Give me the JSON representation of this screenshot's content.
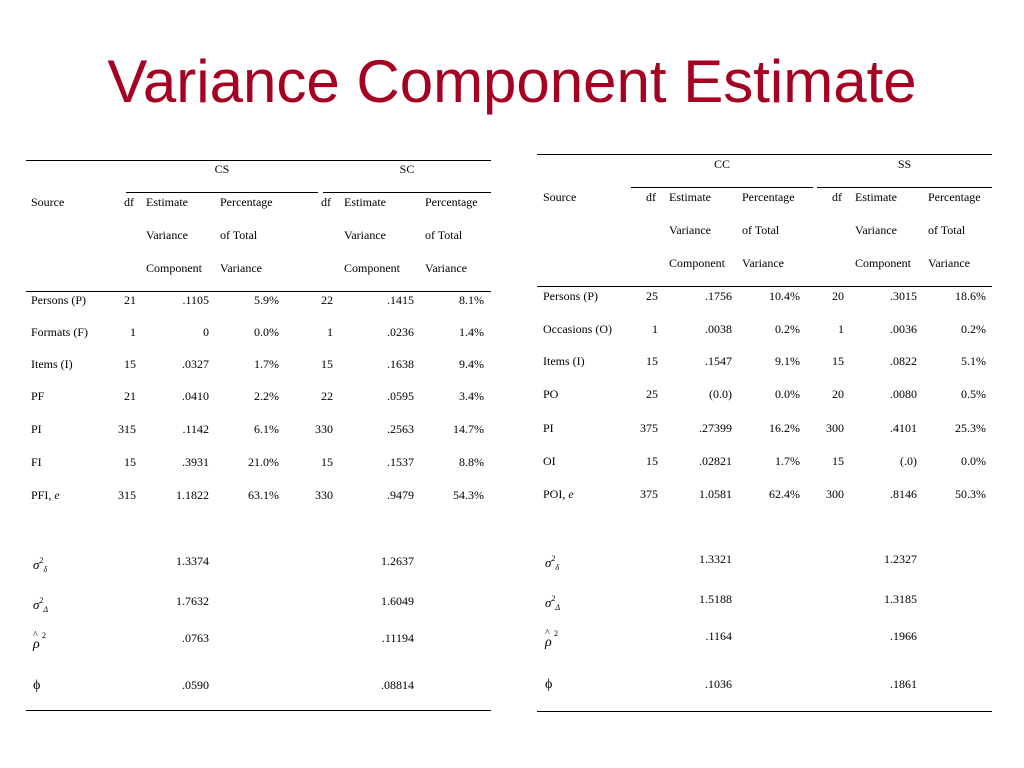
{
  "title": "Variance Component Estimate",
  "tables": [
    {
      "groups": [
        "CS",
        "SC"
      ],
      "headers": {
        "source": "Source",
        "df": "df",
        "estimate": [
          "Estimate",
          "Variance",
          "Component"
        ],
        "percentage": [
          "Percentage",
          "of Total",
          "Variance"
        ]
      },
      "rows": [
        {
          "source": "Persons (P)",
          "g1": [
            "21",
            ".1105",
            "5.9%"
          ],
          "g2": [
            "22",
            ".1415",
            "8.1%"
          ]
        },
        {
          "source": "Formats (F)",
          "g1": [
            "1",
            "0",
            "0.0%"
          ],
          "g2": [
            "1",
            ".0236",
            "1.4%"
          ]
        },
        {
          "source": "Items (I)",
          "g1": [
            "15",
            ".0327",
            "1.7%"
          ],
          "g2": [
            "15",
            ".1638",
            "9.4%"
          ]
        },
        {
          "source": "PF",
          "g1": [
            "21",
            ".0410",
            "2.2%"
          ],
          "g2": [
            "22",
            ".0595",
            "3.4%"
          ]
        },
        {
          "source": "PI",
          "g1": [
            "315",
            ".1142",
            "6.1%"
          ],
          "g2": [
            "330",
            ".2563",
            "14.7%"
          ]
        },
        {
          "source": "FI",
          "g1": [
            "15",
            ".3931",
            "21.0%"
          ],
          "g2": [
            "15",
            ".1537",
            "8.8%"
          ]
        },
        {
          "source": "PFI,",
          "source_sym": "e",
          "g1": [
            "315",
            "1.1822",
            "63.1%"
          ],
          "g2": [
            "330",
            ".9479",
            "54.3%"
          ]
        }
      ],
      "summary": [
        {
          "symbol": "sigma-delta-sq",
          "g1": "1.3374",
          "g2": "1.2637"
        },
        {
          "symbol": "sigma-Delta-sq",
          "g1": "1.7632",
          "g2": "1.6049"
        },
        {
          "symbol": "rho-hat-sq",
          "g1": ".0763",
          "g2": ".11194"
        },
        {
          "symbol": "phi",
          "g1": ".0590",
          "g2": ".08814"
        }
      ]
    },
    {
      "groups": [
        "CC",
        "SS"
      ],
      "headers": {
        "source": "Source",
        "df": "df",
        "estimate": [
          "Estimate",
          "Variance",
          "Component"
        ],
        "percentage": [
          "Percentage",
          "of Total",
          "Variance"
        ]
      },
      "rows": [
        {
          "source": "Persons (P)",
          "g1": [
            "25",
            ".1756",
            "10.4%"
          ],
          "g2": [
            "20",
            ".3015",
            "18.6%"
          ]
        },
        {
          "source": "Occasions (O)",
          "g1": [
            "1",
            ".0038",
            "0.2%"
          ],
          "g2": [
            "1",
            ".0036",
            "0.2%"
          ]
        },
        {
          "source": "Items (I)",
          "g1": [
            "15",
            ".1547",
            "9.1%"
          ],
          "g2": [
            "15",
            ".0822",
            "5.1%"
          ]
        },
        {
          "source": "PO",
          "g1": [
            "25",
            "(0.0)",
            "0.0%"
          ],
          "g2": [
            "20",
            ".0080",
            "0.5%"
          ]
        },
        {
          "source": "PI",
          "g1": [
            "375",
            ".27399",
            "16.2%"
          ],
          "g2": [
            "300",
            ".4101",
            "25.3%"
          ]
        },
        {
          "source": "OI",
          "g1": [
            "15",
            ".02821",
            "1.7%"
          ],
          "g2": [
            "15",
            "(.0)",
            "0.0%"
          ]
        },
        {
          "source": "POI,",
          "source_sym": "e",
          "g1": [
            "375",
            "1.0581",
            "62.4%"
          ],
          "g2": [
            "300",
            ".8146",
            "50.3%"
          ]
        }
      ],
      "summary": [
        {
          "symbol": "sigma-delta-sq",
          "g1": "1.3321",
          "g2": "1.2327"
        },
        {
          "symbol": "sigma-Delta-sq",
          "g1": "1.5188",
          "g2": "1.3185"
        },
        {
          "symbol": "rho-hat-sq",
          "g1": ".1164",
          "g2": ".1966"
        },
        {
          "symbol": "phi",
          "g1": ".1036",
          "g2": ".1861"
        }
      ]
    }
  ]
}
